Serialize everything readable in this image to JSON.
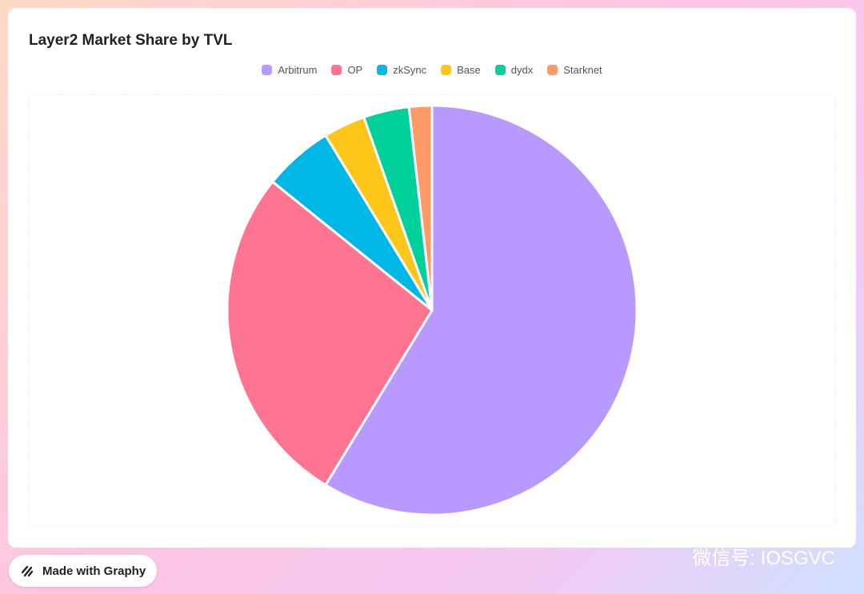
{
  "chart_data": {
    "type": "pie",
    "title": "Layer2 Market Share by TVL",
    "categories": [
      "Arbitrum",
      "OP",
      "zkSync",
      "Base",
      "dydx",
      "Starknet"
    ],
    "values": [
      58.7,
      27.1,
      5.5,
      3.3,
      3.6,
      1.8
    ],
    "colors": [
      "#b899ff",
      "#ff7490",
      "#00b8e6",
      "#ffc61a",
      "#00d09c",
      "#ff9966"
    ],
    "legend": "top"
  },
  "badge": "Made with Graphy",
  "watermark": "微信号: IOSGVC"
}
